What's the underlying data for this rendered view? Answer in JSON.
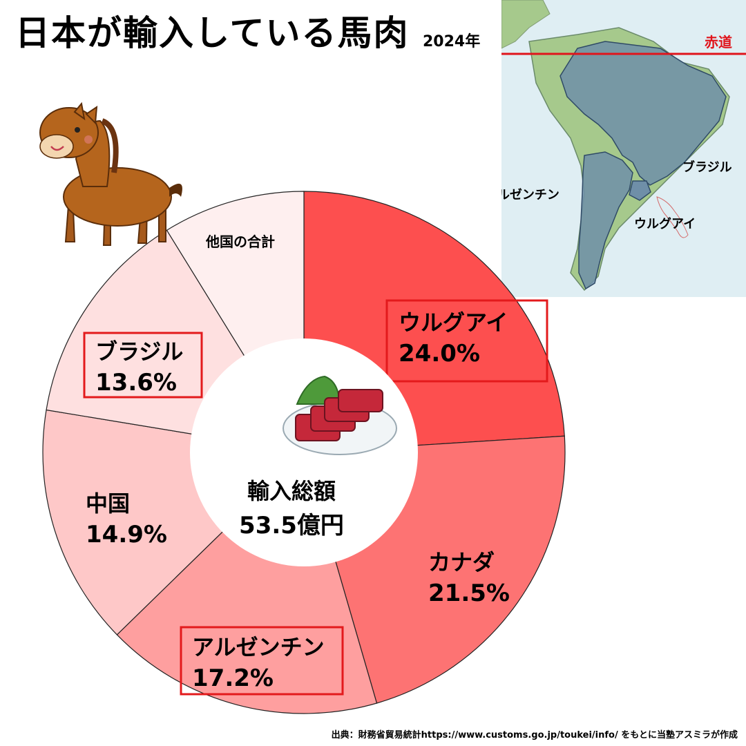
{
  "header": {
    "title": "日本が輸入している馬肉",
    "year": "2024年"
  },
  "map": {
    "equator_label": "赤道",
    "country_labels": {
      "brazil": "ブラジル",
      "argentina": "アルゼンチン",
      "uruguay": "ウルグアイ"
    },
    "colors": {
      "sea": "#dfeef3",
      "land": "#a6c98c",
      "highlight": "#6f8fa8",
      "equator": "#e0141b"
    }
  },
  "chart_data": {
    "type": "pie",
    "donut": true,
    "center_label": {
      "line1": "輸入総額",
      "line2": "53.5億円"
    },
    "slices": [
      {
        "label": "ウルグアイ",
        "value_text": "24.0%",
        "value": 24.0,
        "color": "#fd4f4f",
        "highlight": true
      },
      {
        "label": "カナダ",
        "value_text": "21.5%",
        "value": 21.5,
        "color": "#fd7373",
        "highlight": false
      },
      {
        "label": "アルゼンチン",
        "value_text": "17.2%",
        "value": 17.2,
        "color": "#fe9f9f",
        "highlight": true
      },
      {
        "label": "中国",
        "value_text": "14.9%",
        "value": 14.9,
        "color": "#fec8c8",
        "highlight": false
      },
      {
        "label": "ブラジル",
        "value_text": "13.6%",
        "value": 13.6,
        "color": "#fee0e0",
        "highlight": true
      },
      {
        "label": "他国の合計",
        "value_text": "",
        "value": 8.8,
        "color": "#feefef",
        "highlight": false
      }
    ],
    "highlight_box_color": "#e31a1c"
  },
  "footer": {
    "source": "出典：財務省貿易統計https://www.customs.go.jp/toukei/info/ をもとに当塾アスミラが作成"
  }
}
